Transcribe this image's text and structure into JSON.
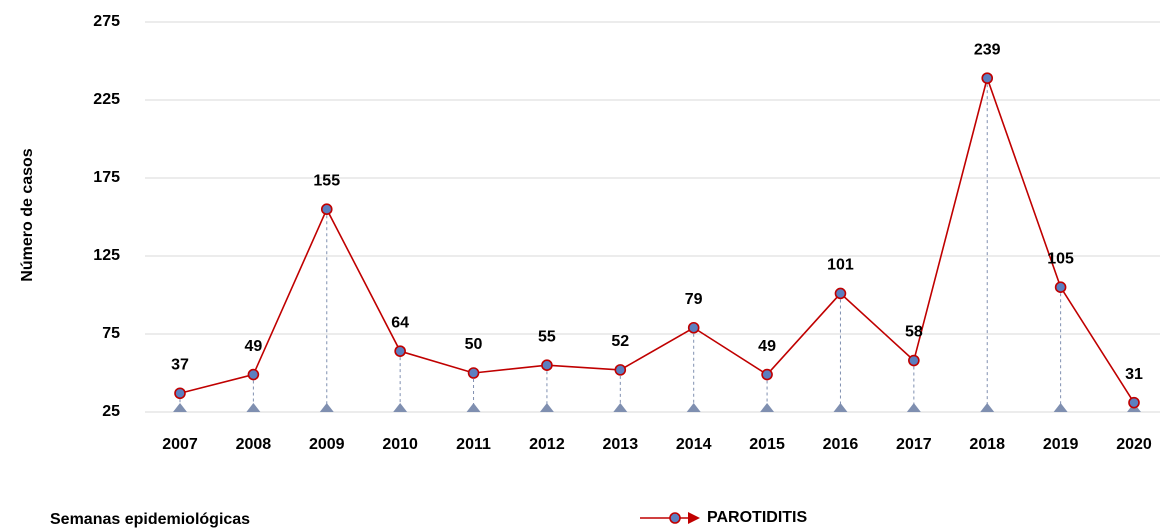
{
  "chart_data": {
    "type": "line",
    "y_label": "Número de casos",
    "x_label": "Semanas epidemiológicas",
    "categories": [
      "2007",
      "2008",
      "2009",
      "2010",
      "2011",
      "2012",
      "2013",
      "2014",
      "2015",
      "2016",
      "2017",
      "2018",
      "2019",
      "2020"
    ],
    "series": [
      {
        "name": "PAROTIDITIS",
        "color": "#c00000",
        "marker_color": "#5b7fc0",
        "values": [
          37,
          49,
          155,
          64,
          50,
          55,
          52,
          79,
          49,
          101,
          58,
          239,
          105,
          31
        ]
      }
    ],
    "ylim": [
      25,
      275
    ],
    "yticks": [
      25,
      75,
      125,
      175,
      225,
      275
    ],
    "grid": true
  }
}
